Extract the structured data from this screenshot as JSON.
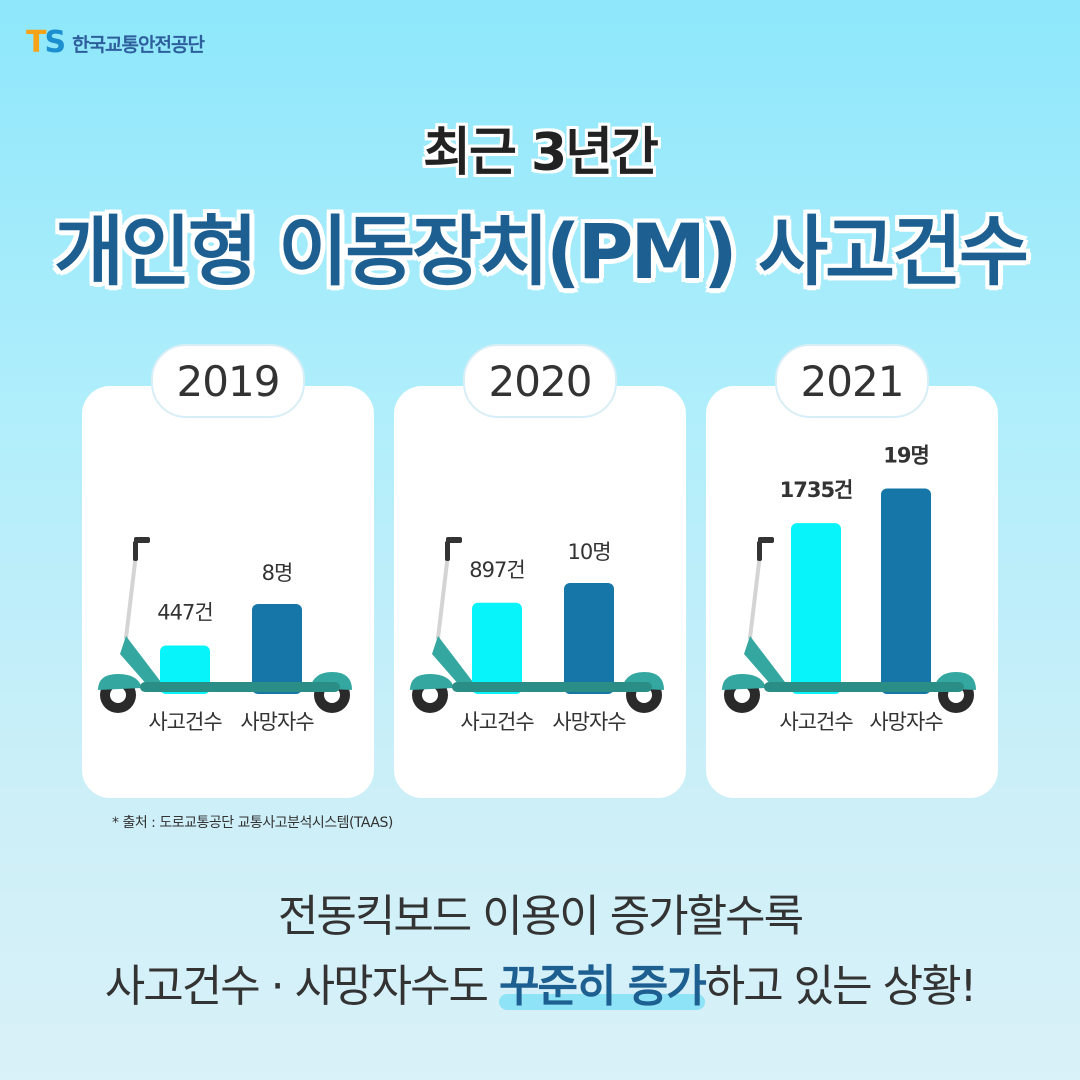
{
  "logo": {
    "mark_t": "T",
    "mark_s": "S",
    "org_name": "한국교통안전공단"
  },
  "heading": {
    "subtitle": "최근 3년간",
    "title": "개인형 이동장치(PM) 사고건수"
  },
  "colors": {
    "accidents": "#08f4fb",
    "deaths": "#1576a7",
    "scooter": "#34a8a0",
    "scooter_deck": "#2a8e86"
  },
  "chart_data": [
    {
      "type": "bar",
      "title": "2019",
      "categories": [
        "사고건수",
        "사망자수"
      ],
      "values": [
        447,
        8
      ],
      "value_labels": [
        "447건",
        "8명"
      ],
      "axis": "none"
    },
    {
      "type": "bar",
      "title": "2020",
      "categories": [
        "사고건수",
        "사망자수"
      ],
      "values": [
        897,
        10
      ],
      "value_labels": [
        "897건",
        "10명"
      ],
      "axis": "none"
    },
    {
      "type": "bar",
      "title": "2021",
      "categories": [
        "사고건수",
        "사망자수"
      ],
      "values": [
        1735,
        19
      ],
      "value_labels": [
        "1735건",
        "19명"
      ],
      "axis": "none"
    }
  ],
  "source": "* 출처 : 도로교통공단 교통사고분석시스템(TAAS)",
  "footer": {
    "line1": "전동킥보드 이용이 증가할수록",
    "line2_a": "사고건수 · 사망자수도 ",
    "line2_highlight": "꾸준히 증가",
    "line2_b": "하고 있는 상황!"
  }
}
